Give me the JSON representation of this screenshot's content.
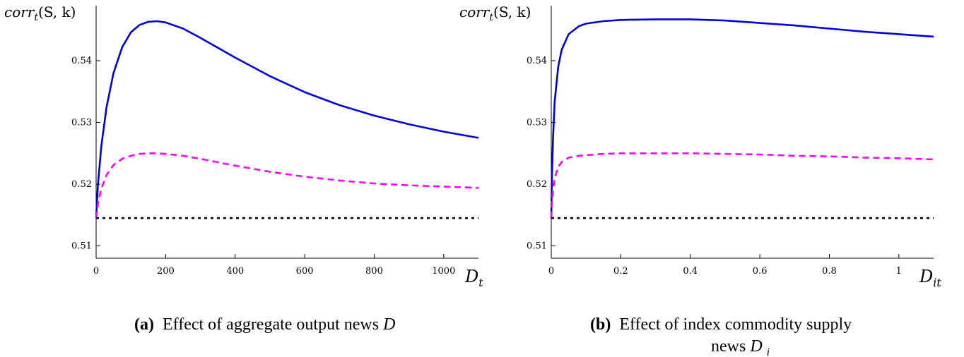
{
  "chart_data": [
    {
      "type": "line",
      "ylabel": "corr_t(S, k)",
      "ylabel_parts": {
        "base": "corr",
        "sub": "t",
        "rest": "(S, k)"
      },
      "xlabel": "D_t",
      "xlabel_parts": {
        "base": "D",
        "sub": "t"
      },
      "xlim": [
        0,
        1100
      ],
      "ylim": [
        0.508,
        0.548
      ],
      "xticks": [
        0,
        200,
        400,
        600,
        800,
        1000
      ],
      "xtick_labels": [
        "0",
        "200",
        "400",
        "600",
        "800",
        "1000"
      ],
      "yticks": [
        0.51,
        0.52,
        0.53,
        0.54
      ],
      "ytick_labels": [
        "0.51",
        "0.52",
        "0.53",
        "0.54"
      ],
      "grid": false,
      "series": [
        {
          "style": "solid",
          "color": "#0000dd",
          "x": [
            0,
            5,
            15,
            30,
            50,
            75,
            100,
            125,
            150,
            175,
            200,
            250,
            300,
            400,
            500,
            600,
            700,
            800,
            900,
            1000,
            1100
          ],
          "y": [
            0.5145,
            0.5198,
            0.5262,
            0.5325,
            0.538,
            0.5422,
            0.5446,
            0.5458,
            0.5463,
            0.5464,
            0.5462,
            0.5452,
            0.5437,
            0.5405,
            0.5375,
            0.5349,
            0.5328,
            0.5311,
            0.5297,
            0.5285,
            0.5275
          ]
        },
        {
          "style": "dashed",
          "color": "#ff00ff",
          "x": [
            0,
            5,
            15,
            30,
            50,
            75,
            100,
            125,
            150,
            175,
            200,
            250,
            300,
            400,
            500,
            600,
            700,
            800,
            900,
            1000,
            1100
          ],
          "y": [
            0.5145,
            0.5168,
            0.5193,
            0.5215,
            0.5231,
            0.5241,
            0.5246,
            0.5249,
            0.525,
            0.525,
            0.5249,
            0.5246,
            0.5241,
            0.523,
            0.522,
            0.5212,
            0.5206,
            0.5201,
            0.5198,
            0.5196,
            0.5194
          ]
        },
        {
          "style": "dotted",
          "color": "#000000",
          "x": [
            0,
            1100
          ],
          "y": [
            0.5145,
            0.5145
          ]
        }
      ],
      "caption": {
        "label": "(a)",
        "text": "Effect of aggregate output news ",
        "var": "D"
      }
    },
    {
      "type": "line",
      "ylabel": "corr_t(S, k)",
      "ylabel_parts": {
        "base": "corr",
        "sub": "t",
        "rest": "(S, k)"
      },
      "xlabel": "D_it",
      "xlabel_parts": {
        "base": "D",
        "sub": "it"
      },
      "xlim": [
        0,
        1.1
      ],
      "ylim": [
        0.508,
        0.548
      ],
      "xticks": [
        0,
        0.2,
        0.4,
        0.6,
        0.8,
        1
      ],
      "xtick_labels": [
        "0",
        "0.2",
        "0.4",
        "0.6",
        "0.8",
        "1"
      ],
      "yticks": [
        0.51,
        0.52,
        0.53,
        0.54
      ],
      "ytick_labels": [
        "0.51",
        "0.52",
        "0.53",
        "0.54"
      ],
      "grid": false,
      "series": [
        {
          "style": "solid",
          "color": "#0000dd",
          "x": [
            0,
            0.002,
            0.005,
            0.01,
            0.02,
            0.03,
            0.05,
            0.08,
            0.1,
            0.15,
            0.2,
            0.3,
            0.4,
            0.5,
            0.6,
            0.7,
            0.8,
            0.9,
            1.0,
            1.1
          ],
          "y": [
            0.5145,
            0.5215,
            0.5275,
            0.5335,
            0.539,
            0.5418,
            0.5443,
            0.5456,
            0.546,
            0.5464,
            0.5466,
            0.5467,
            0.5467,
            0.5465,
            0.5461,
            0.5457,
            0.5452,
            0.5447,
            0.5443,
            0.5439
          ]
        },
        {
          "style": "dashed",
          "color": "#ff00ff",
          "x": [
            0,
            0.002,
            0.005,
            0.01,
            0.02,
            0.03,
            0.05,
            0.08,
            0.1,
            0.15,
            0.2,
            0.3,
            0.4,
            0.5,
            0.6,
            0.7,
            0.8,
            0.9,
            1.0,
            1.1
          ],
          "y": [
            0.5145,
            0.5172,
            0.5192,
            0.521,
            0.5228,
            0.5236,
            0.5243,
            0.5246,
            0.5247,
            0.5249,
            0.525,
            0.525,
            0.525,
            0.5249,
            0.5248,
            0.5246,
            0.5245,
            0.5243,
            0.5242,
            0.524
          ]
        },
        {
          "style": "dotted",
          "color": "#000000",
          "x": [
            0,
            1.1
          ],
          "y": [
            0.5145,
            0.5145
          ]
        }
      ],
      "caption": {
        "label": "(b)",
        "text": "Effect of index commodity supply",
        "line2": "news ",
        "var": "D",
        "var_sub": "i"
      }
    }
  ]
}
